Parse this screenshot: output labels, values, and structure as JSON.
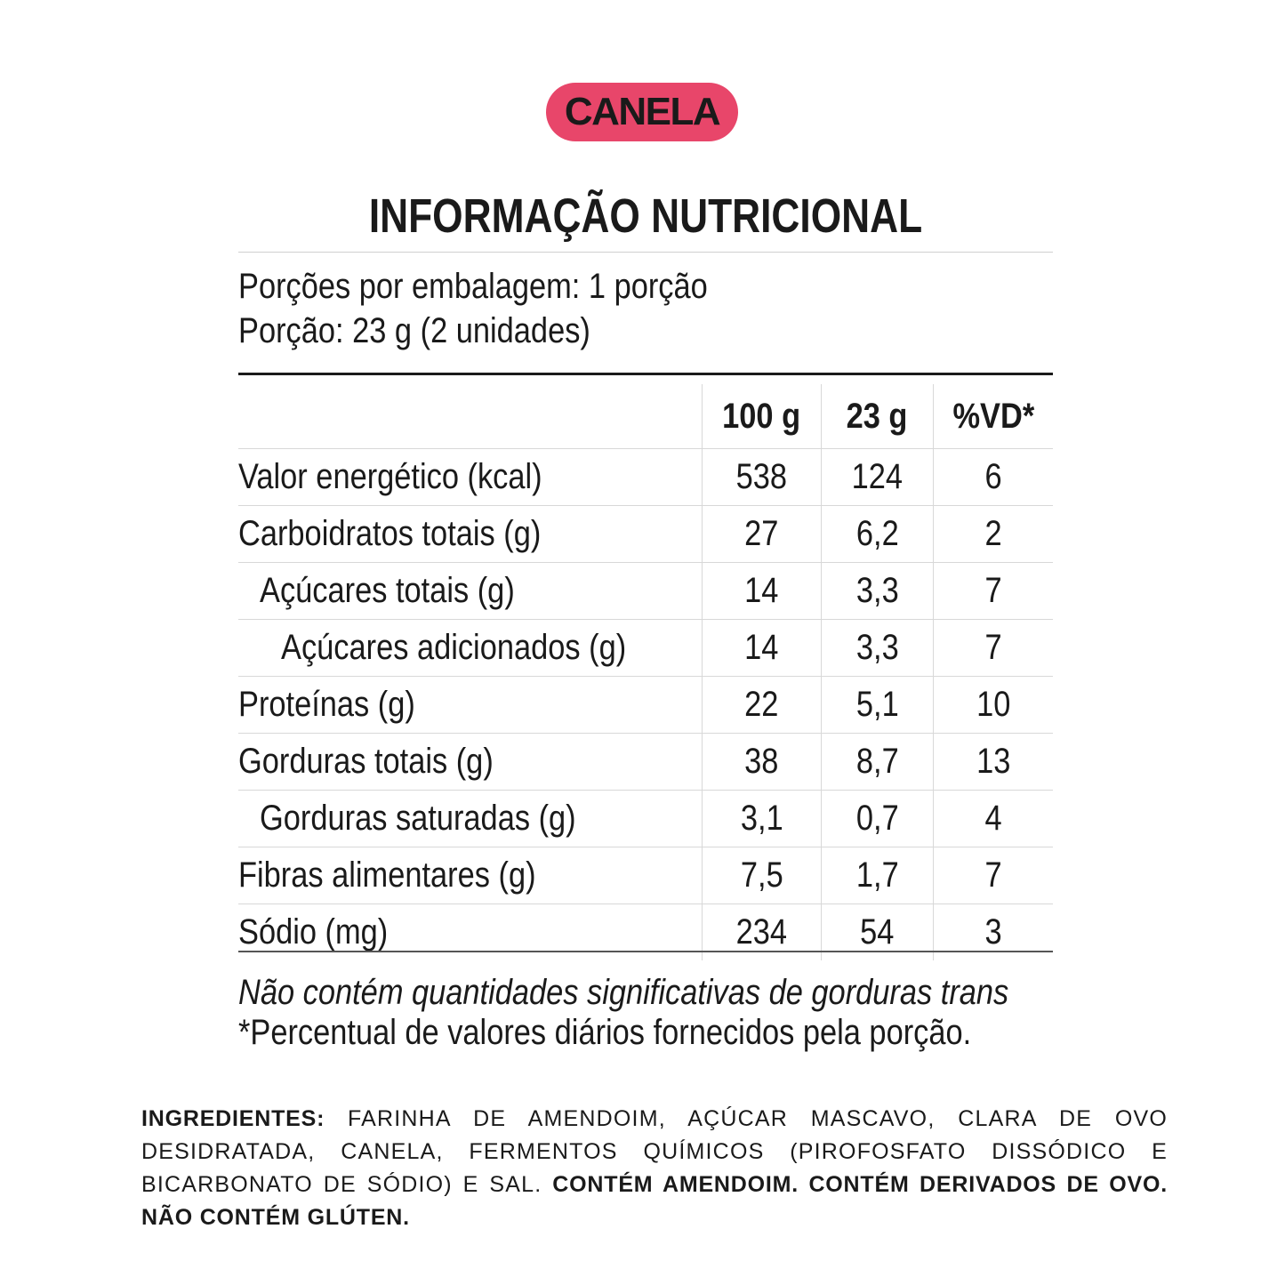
{
  "badge": {
    "label": "CANELA",
    "color": "#e8466a"
  },
  "title": "INFORMAÇÃO NUTRICIONAL",
  "serving": {
    "per_package": "Porções por embalagem: 1 porção",
    "portion": "Porção: 23 g (2 unidades)"
  },
  "table": {
    "headers": [
      "",
      "100 g",
      "23 g",
      "%VD*"
    ],
    "rows": [
      {
        "label": "Valor energético (kcal)",
        "per100": "538",
        "perPortion": "124",
        "vd": "6"
      },
      {
        "label": "Carboidratos totais (g)",
        "per100": "27",
        "perPortion": "6,2",
        "vd": "2"
      },
      {
        "label": "Açúcares totais (g)",
        "per100": "14",
        "perPortion": "3,3",
        "vd": "7"
      },
      {
        "label": "Açúcares adicionados (g)",
        "per100": "14",
        "perPortion": "3,3",
        "vd": "7"
      },
      {
        "label": "Proteínas (g)",
        "per100": "22",
        "perPortion": "5,1",
        "vd": "10"
      },
      {
        "label": "Gorduras totais (g)",
        "per100": "38",
        "perPortion": "8,7",
        "vd": "13"
      },
      {
        "label": "Gorduras saturadas (g)",
        "per100": "3,1",
        "perPortion": "0,7",
        "vd": "4"
      },
      {
        "label": "Fibras alimentares (g)",
        "per100": "7,5",
        "perPortion": "1,7",
        "vd": "7"
      },
      {
        "label": "Sódio (mg)",
        "per100": "234",
        "perPortion": "54",
        "vd": "3"
      }
    ]
  },
  "notes": {
    "trans": "Não contém quantidades significativas de gorduras trans",
    "vd": "*Percentual de valores diários fornecidos pela porção."
  },
  "ingredients": {
    "heading": "INGREDIENTES:",
    "text": " FARINHA DE AMENDOIM, AÇÚCAR MASCAVO, CLARA DE OVO DESIDRATADA, CANELA, FERMENTOS QUÍMICOS (PIROFOSFATO DISSÓDICO E BICARBONATO DE SÓDIO) E SAL. ",
    "allergens": "CONTÉM AMENDOIM. CONTÉM DERIVADOS DE OVO. NÃO CONTÉM GLÚTEN."
  }
}
